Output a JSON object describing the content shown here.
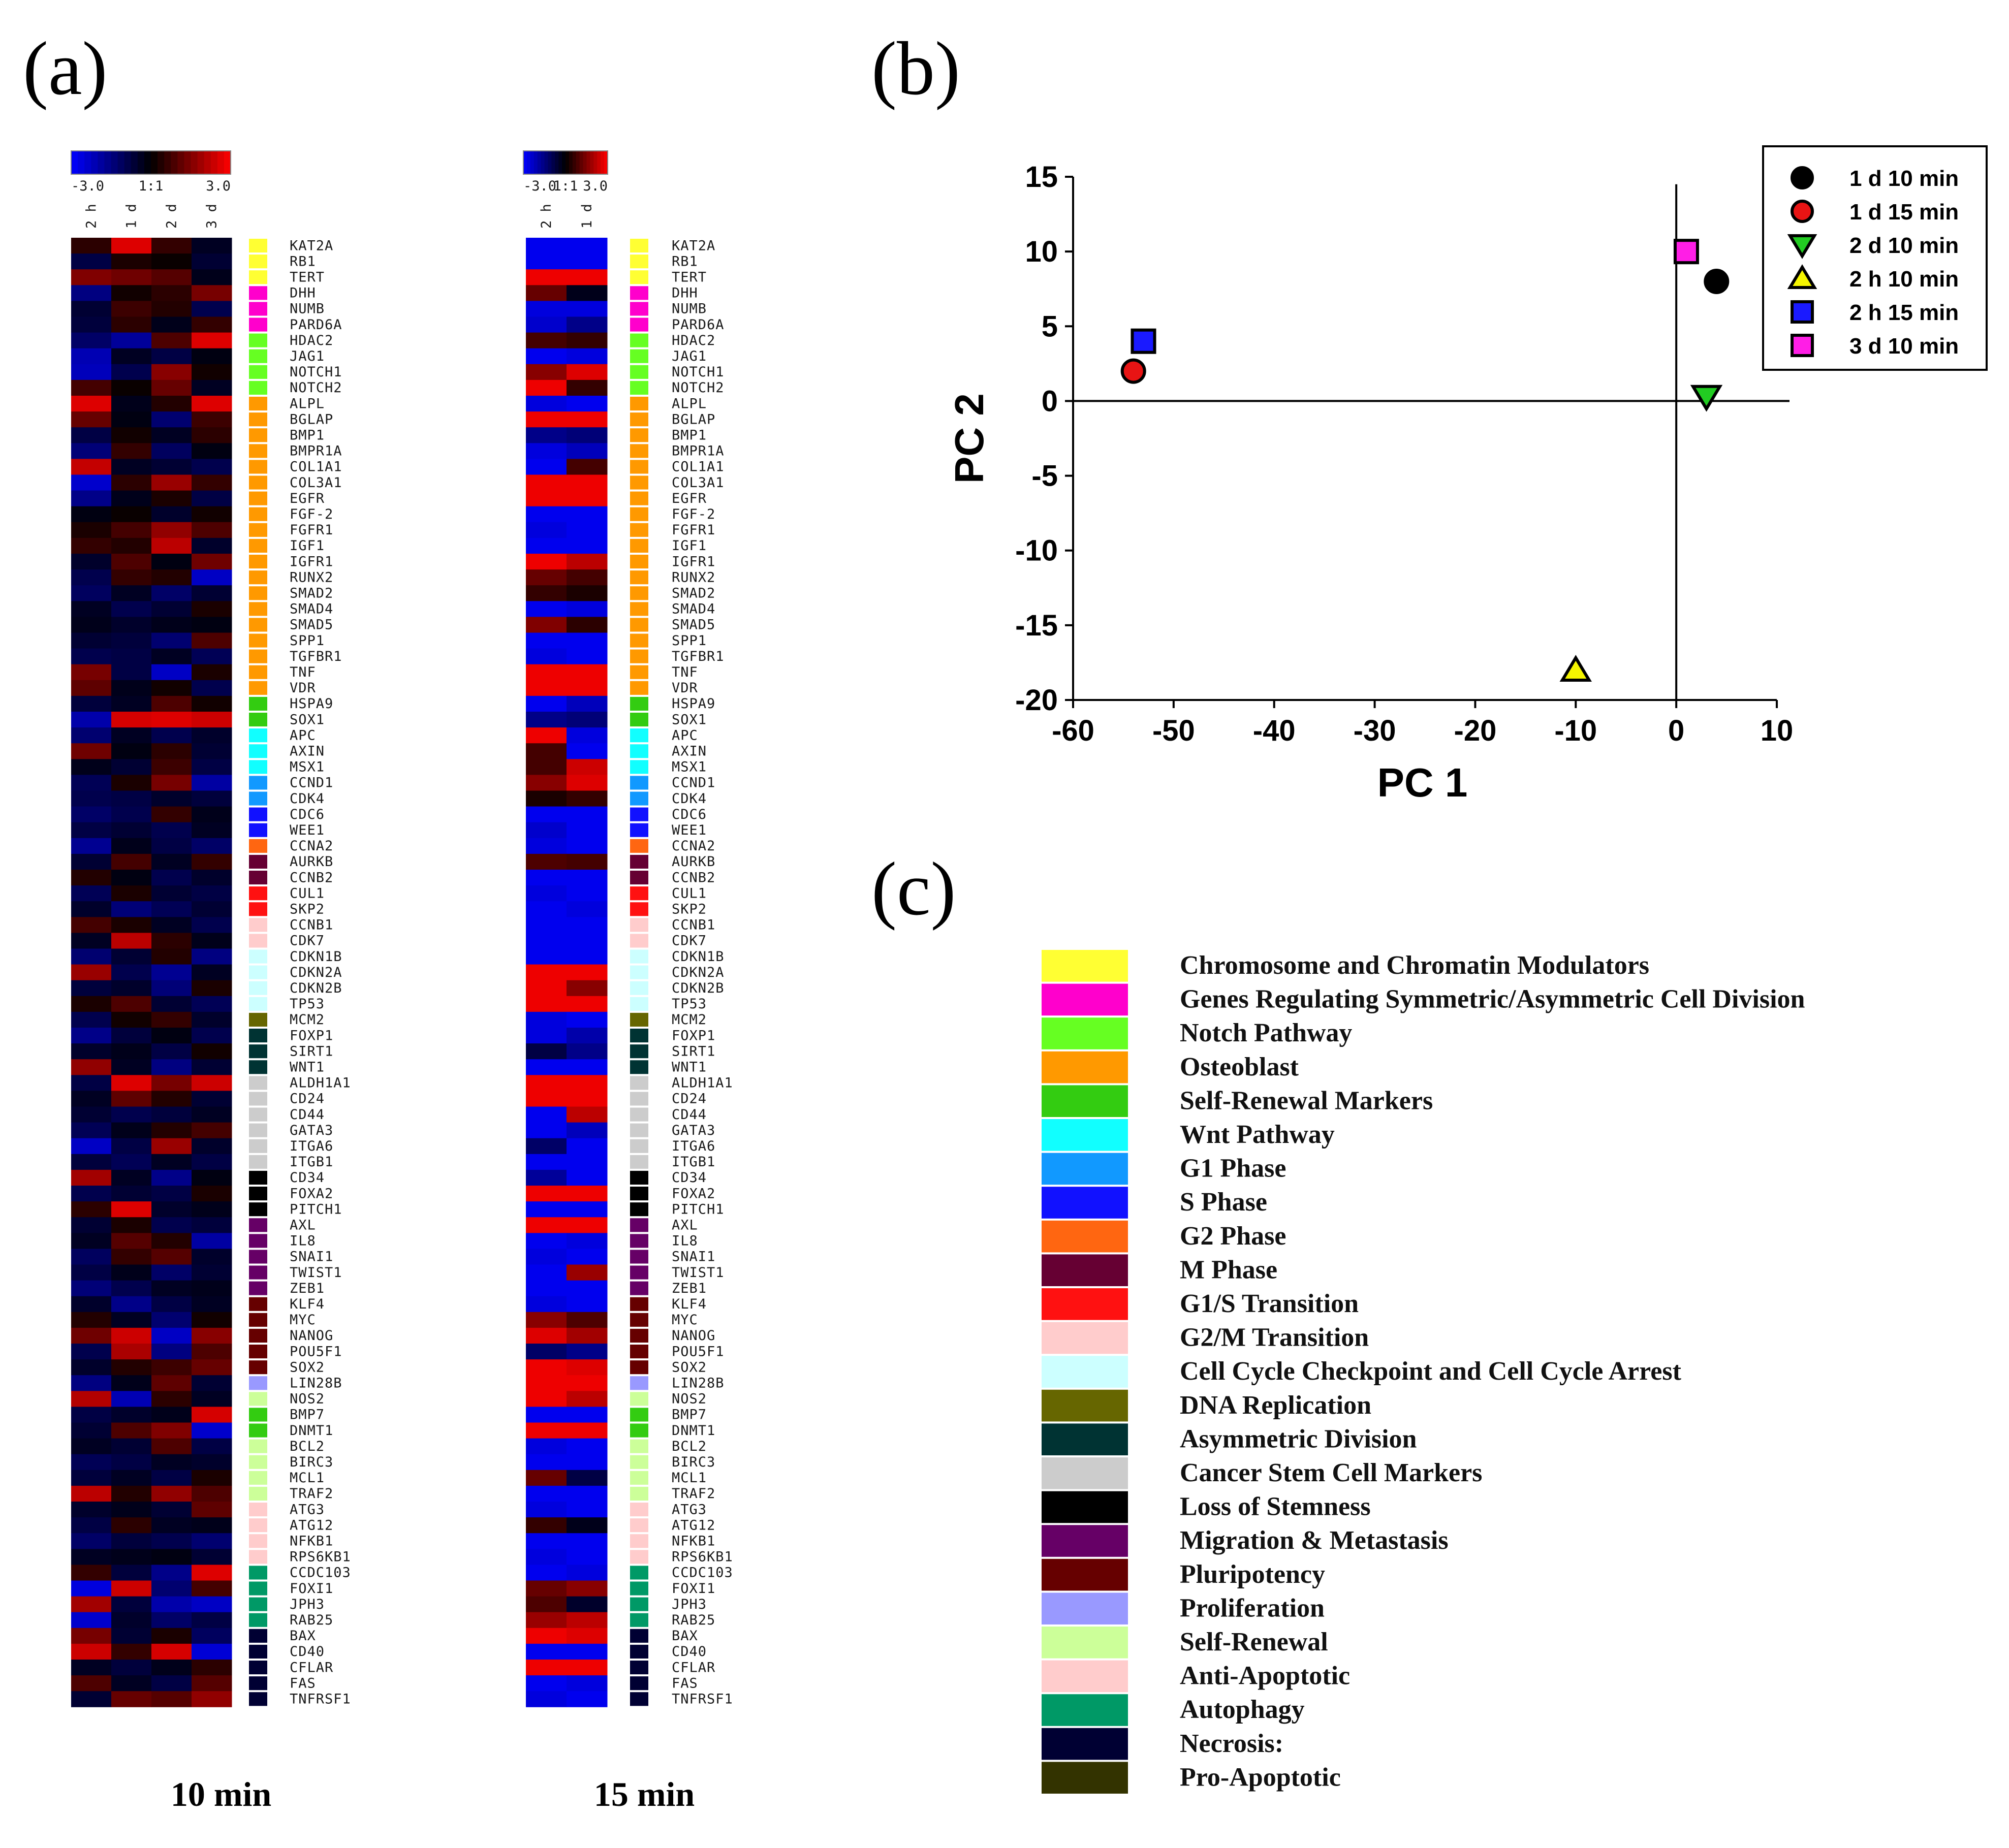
{
  "panels": {
    "a": "(a)",
    "b": "(b)",
    "c": "(c)"
  },
  "heatmap": {
    "scale_labels_10": [
      "-3.0",
      "1:1",
      "3.0"
    ],
    "scale_labels_15": [
      "-3.0",
      "1:1",
      "3.0"
    ],
    "genes": [
      "KAT2A",
      "RB1",
      "TERT",
      "DHH",
      "NUMB",
      "PARD6A",
      "HDAC2",
      "JAG1",
      "NOTCH1",
      "NOTCH2",
      "ALPL",
      "BGLAP",
      "BMP1",
      "BMPR1A",
      "COL1A1",
      "COL3A1",
      "EGFR",
      "FGF-2",
      "FGFR1",
      "IGF1",
      "IGFR1",
      "RUNX2",
      "SMAD2",
      "SMAD4",
      "SMAD5",
      "SPP1",
      "TGFBR1",
      "TNF",
      "VDR",
      "HSPA9",
      "SOX1",
      "APC",
      "AXIN",
      "MSX1",
      "CCND1",
      "CDK4",
      "CDC6",
      "WEE1",
      "CCNA2",
      "AURKB",
      "CCNB2",
      "CUL1",
      "SKP2",
      "CCNB1",
      "CDK7",
      "CDKN1B",
      "CDKN2A",
      "CDKN2B",
      "TP53",
      "MCM2",
      "FOXP1",
      "SIRT1",
      "WNT1",
      "ALDH1A1",
      "CD24",
      "CD44",
      "GATA3",
      "ITGA6",
      "ITGB1",
      "CD34",
      "FOXA2",
      "PITCH1",
      "AXL",
      "IL8",
      "SNAI1",
      "TWIST1",
      "ZEB1",
      "KLF4",
      "MYC",
      "NANOG",
      "POU5F1",
      "SOX2",
      "LIN28B",
      "NOS2",
      "BMP7",
      "DNMT1",
      "BCL2",
      "BIRC3",
      "MCL1",
      "TRAF2",
      "ATG3",
      "ATG12",
      "NFKB1",
      "RPS6KB1",
      "CCDC103",
      "FOXI1",
      "JPH3",
      "RAB25",
      "BAX",
      "CD40",
      "CFLAR",
      "FAS",
      "TNFRSF1"
    ],
    "gene_category_index": [
      0,
      0,
      0,
      1,
      1,
      1,
      2,
      2,
      2,
      2,
      3,
      3,
      3,
      3,
      3,
      3,
      3,
      3,
      3,
      3,
      3,
      3,
      3,
      3,
      3,
      3,
      3,
      3,
      3,
      4,
      4,
      5,
      5,
      5,
      6,
      6,
      7,
      7,
      8,
      9,
      9,
      10,
      10,
      11,
      11,
      12,
      12,
      12,
      12,
      13,
      14,
      14,
      14,
      15,
      15,
      15,
      15,
      15,
      15,
      16,
      16,
      16,
      17,
      17,
      17,
      17,
      17,
      18,
      18,
      18,
      18,
      18,
      19,
      20,
      4,
      4,
      20,
      20,
      20,
      20,
      21,
      21,
      21,
      21,
      22,
      22,
      22,
      22,
      23,
      23,
      23,
      23,
      23
    ],
    "set_10": {
      "caption": "10 min",
      "columns": [
        "2 h",
        "1 d",
        "2 d",
        "3 d"
      ],
      "values": [
        [
          0.5,
          2.6,
          0.6,
          -0.4
        ],
        [
          -0.8,
          0.3,
          0.1,
          -0.6
        ],
        [
          1.5,
          1.3,
          1.0,
          -0.3
        ],
        [
          -1.5,
          0.2,
          0.5,
          1.4
        ],
        [
          -0.6,
          0.7,
          0.4,
          -0.9
        ],
        [
          -0.7,
          0.5,
          -0.3,
          0.6
        ],
        [
          -1.2,
          -1.8,
          0.9,
          2.6
        ],
        [
          -2.1,
          -0.4,
          -0.8,
          -0.2
        ],
        [
          -2.2,
          -0.9,
          1.6,
          0.2
        ],
        [
          0.8,
          0.1,
          1.2,
          -0.4
        ],
        [
          2.6,
          -0.3,
          0.4,
          2.6
        ],
        [
          1.2,
          -0.2,
          -1.3,
          0.7
        ],
        [
          -0.8,
          0.2,
          -0.4,
          0.5
        ],
        [
          -1.4,
          0.6,
          -1.1,
          -0.2
        ],
        [
          2.3,
          -0.4,
          -0.6,
          -0.9
        ],
        [
          -2.4,
          0.5,
          1.8,
          0.6
        ],
        [
          -1.6,
          -0.3,
          0.3,
          -0.8
        ],
        [
          -0.2,
          0.1,
          -0.5,
          0.2
        ],
        [
          0.3,
          0.8,
          1.7,
          0.9
        ],
        [
          0.6,
          0.4,
          2.2,
          -0.5
        ],
        [
          -0.5,
          0.9,
          -0.2,
          1.3
        ],
        [
          -0.9,
          0.6,
          0.4,
          -2.3
        ],
        [
          -1.1,
          -0.4,
          -1.2,
          -0.6
        ],
        [
          -0.4,
          -0.9,
          -0.6,
          0.3
        ],
        [
          -0.3,
          -0.5,
          -0.3,
          -0.2
        ],
        [
          -0.6,
          -0.7,
          -1.3,
          0.9
        ],
        [
          -0.9,
          -0.8,
          -0.4,
          -1.0
        ],
        [
          1.4,
          -0.8,
          -2.3,
          0.3
        ],
        [
          1.1,
          -0.3,
          0.2,
          -0.9
        ],
        [
          -0.7,
          -0.4,
          0.9,
          0.2
        ],
        [
          -2.0,
          2.5,
          2.6,
          2.4
        ],
        [
          -1.3,
          -0.4,
          -0.9,
          -0.5
        ],
        [
          1.3,
          -0.2,
          0.5,
          -0.6
        ],
        [
          -0.3,
          -0.6,
          0.7,
          -0.8
        ],
        [
          -1.0,
          0.3,
          1.4,
          -1.9
        ],
        [
          -0.9,
          -0.8,
          -0.5,
          -0.7
        ],
        [
          -1.2,
          -0.9,
          0.6,
          -0.3
        ],
        [
          -0.8,
          -0.6,
          -0.9,
          -0.4
        ],
        [
          -1.7,
          -0.3,
          -0.8,
          -1.2
        ],
        [
          -0.6,
          0.8,
          -0.4,
          0.6
        ],
        [
          0.4,
          -0.2,
          -0.9,
          -0.5
        ],
        [
          -1.0,
          0.3,
          -0.6,
          -0.8
        ],
        [
          -0.5,
          -1.4,
          -1.0,
          -0.6
        ],
        [
          0.8,
          0.3,
          -0.4,
          -0.9
        ],
        [
          -0.4,
          2.2,
          0.5,
          -0.3
        ],
        [
          -1.3,
          -0.6,
          0.4,
          -1.5
        ],
        [
          1.8,
          -0.9,
          -1.7,
          -0.4
        ],
        [
          -0.7,
          -0.5,
          -1.4,
          0.3
        ],
        [
          0.3,
          0.9,
          -0.6,
          -1.0
        ],
        [
          -0.9,
          0.2,
          0.6,
          -0.5
        ],
        [
          -1.6,
          -0.7,
          -0.2,
          -0.9
        ],
        [
          -0.5,
          -0.3,
          -0.8,
          0.2
        ],
        [
          1.7,
          -0.4,
          -1.5,
          -0.6
        ],
        [
          -0.8,
          2.6,
          1.4,
          2.4
        ],
        [
          -0.4,
          1.1,
          0.4,
          -0.6
        ],
        [
          -0.6,
          -0.9,
          -0.7,
          -0.4
        ],
        [
          -1.0,
          -0.3,
          0.4,
          0.8
        ],
        [
          -2.3,
          -0.8,
          1.8,
          -0.5
        ],
        [
          -0.7,
          -1.0,
          -0.4,
          -0.8
        ],
        [
          1.9,
          -0.4,
          -1.6,
          -0.2
        ],
        [
          -0.9,
          -0.6,
          -0.8,
          0.3
        ],
        [
          0.5,
          2.6,
          -0.5,
          -0.3
        ],
        [
          -0.6,
          0.3,
          -0.9,
          -0.7
        ],
        [
          -0.4,
          1.0,
          0.4,
          -1.9
        ],
        [
          -1.1,
          0.6,
          1.0,
          -0.5
        ],
        [
          -0.8,
          -0.3,
          -1.2,
          -0.6
        ],
        [
          -1.4,
          -0.9,
          -0.4,
          -0.3
        ],
        [
          -0.5,
          -1.6,
          -0.8,
          -0.4
        ],
        [
          0.4,
          -0.4,
          -1.3,
          0.2
        ],
        [
          1.3,
          2.4,
          -2.3,
          1.6
        ],
        [
          -0.9,
          2.0,
          -1.5,
          0.9
        ],
        [
          -0.5,
          0.4,
          0.7,
          1.2
        ],
        [
          -1.5,
          -0.3,
          1.1,
          -0.6
        ],
        [
          2.1,
          -2.1,
          0.5,
          -0.4
        ],
        [
          -0.8,
          -0.5,
          -0.3,
          2.5
        ],
        [
          -0.6,
          0.9,
          1.5,
          -2.4
        ],
        [
          -0.4,
          -0.6,
          0.9,
          -0.8
        ],
        [
          -1.0,
          -0.8,
          -0.4,
          -0.5
        ],
        [
          -0.7,
          -0.4,
          -0.8,
          0.3
        ],
        [
          2.2,
          0.4,
          1.7,
          0.9
        ],
        [
          -0.5,
          -0.3,
          -0.6,
          1.1
        ],
        [
          -0.8,
          0.5,
          -0.4,
          -0.3
        ],
        [
          -1.2,
          -0.7,
          -0.9,
          -1.3
        ],
        [
          -0.4,
          -0.3,
          -0.2,
          -0.6
        ],
        [
          0.6,
          -0.7,
          -1.6,
          2.6
        ],
        [
          -2.6,
          2.4,
          -1.3,
          0.8
        ],
        [
          1.9,
          -0.7,
          -2.0,
          -2.3
        ],
        [
          -2.4,
          -0.5,
          -1.2,
          -0.8
        ],
        [
          1.4,
          -0.6,
          0.3,
          -1.1
        ],
        [
          2.4,
          0.6,
          2.5,
          -2.5
        ],
        [
          -0.4,
          -0.7,
          -0.3,
          0.5
        ],
        [
          0.9,
          -0.4,
          -0.8,
          1.0
        ],
        [
          -0.6,
          1.2,
          1.0,
          1.7
        ]
      ]
    },
    "set_15": {
      "caption": "15 min",
      "columns": [
        "2 h",
        "1 d"
      ],
      "values": [
        [
          -2.8,
          -2.8
        ],
        [
          -2.8,
          -2.8
        ],
        [
          2.8,
          2.8
        ],
        [
          1.2,
          -0.3
        ],
        [
          -2.6,
          -2.6
        ],
        [
          -2.4,
          -1.6
        ],
        [
          0.8,
          0.6
        ],
        [
          -2.8,
          -2.6
        ],
        [
          1.6,
          2.6
        ],
        [
          2.8,
          0.6
        ],
        [
          -2.6,
          -2.8
        ],
        [
          2.8,
          2.8
        ],
        [
          -1.6,
          -1.4
        ],
        [
          -2.6,
          -2.2
        ],
        [
          -2.8,
          0.8
        ],
        [
          2.8,
          2.8
        ],
        [
          2.8,
          2.8
        ],
        [
          -2.8,
          -2.8
        ],
        [
          -2.6,
          -2.8
        ],
        [
          -2.8,
          -2.8
        ],
        [
          2.8,
          2.2
        ],
        [
          1.2,
          0.8
        ],
        [
          0.6,
          0.3
        ],
        [
          -2.8,
          -2.6
        ],
        [
          1.5,
          0.5
        ],
        [
          -2.8,
          -2.8
        ],
        [
          -2.6,
          -2.8
        ],
        [
          2.8,
          2.8
        ],
        [
          2.8,
          2.8
        ],
        [
          -2.8,
          -2.2
        ],
        [
          -1.6,
          -1.4
        ],
        [
          2.8,
          -2.6
        ],
        [
          0.8,
          -2.8
        ],
        [
          0.8,
          2.4
        ],
        [
          1.6,
          2.6
        ],
        [
          0.3,
          0.6
        ],
        [
          -2.8,
          -2.8
        ],
        [
          -2.4,
          -2.8
        ],
        [
          -2.6,
          -2.8
        ],
        [
          0.9,
          0.8
        ],
        [
          -2.8,
          -2.8
        ],
        [
          -2.6,
          -2.8
        ],
        [
          -2.8,
          -2.6
        ],
        [
          -2.8,
          -2.8
        ],
        [
          -2.8,
          -2.8
        ],
        [
          -2.8,
          -2.8
        ],
        [
          2.8,
          2.8
        ],
        [
          2.8,
          1.6
        ],
        [
          2.8,
          2.8
        ],
        [
          -2.6,
          -2.8
        ],
        [
          -2.6,
          -2.0
        ],
        [
          -0.8,
          -1.6
        ],
        [
          -2.8,
          -2.8
        ],
        [
          2.8,
          2.8
        ],
        [
          2.8,
          2.8
        ],
        [
          -2.8,
          2.2
        ],
        [
          -2.8,
          -2.2
        ],
        [
          -1.2,
          -2.8
        ],
        [
          -2.8,
          -2.8
        ],
        [
          -1.8,
          -2.8
        ],
        [
          2.8,
          2.8
        ],
        [
          -2.8,
          -2.8
        ],
        [
          2.8,
          2.8
        ],
        [
          -2.8,
          -2.6
        ],
        [
          -2.6,
          -2.8
        ],
        [
          -2.8,
          1.8
        ],
        [
          -2.8,
          -2.8
        ],
        [
          -2.6,
          -2.8
        ],
        [
          1.6,
          0.9
        ],
        [
          2.6,
          1.9
        ],
        [
          -1.2,
          -1.6
        ],
        [
          2.8,
          2.6
        ],
        [
          2.8,
          2.8
        ],
        [
          2.8,
          2.2
        ],
        [
          -2.8,
          -2.8
        ],
        [
          2.8,
          2.8
        ],
        [
          -2.6,
          -2.8
        ],
        [
          -2.8,
          -2.8
        ],
        [
          1.2,
          -0.8
        ],
        [
          -2.8,
          -2.8
        ],
        [
          -2.6,
          -2.8
        ],
        [
          0.6,
          -0.3
        ],
        [
          -2.8,
          -2.8
        ],
        [
          -2.6,
          -2.8
        ],
        [
          -2.8,
          -2.6
        ],
        [
          1.2,
          1.6
        ],
        [
          0.9,
          -0.5
        ],
        [
          1.8,
          2.2
        ],
        [
          2.8,
          2.6
        ],
        [
          -2.8,
          -2.8
        ],
        [
          2.8,
          2.8
        ],
        [
          -2.8,
          -2.6
        ],
        [
          -2.6,
          -2.8
        ]
      ]
    }
  },
  "pca": {
    "chart_data": {
      "type": "scatter",
      "xlabel": "PC 1",
      "ylabel": "PC 2",
      "xlim": [
        -60,
        10
      ],
      "ylim": [
        -20,
        15
      ],
      "xticks": [
        "-60",
        "-50",
        "-40",
        "-30",
        "-20",
        "-10",
        "0",
        "10"
      ],
      "yticks": [
        "15",
        "10",
        "5",
        "0",
        "-5",
        "-10",
        "-15",
        "-20"
      ],
      "legend_position": "top-right",
      "series": [
        {
          "name": "1 d 10 min",
          "marker": "circle",
          "color": "#000000",
          "x": 4,
          "y": 8
        },
        {
          "name": "1 d 15 min",
          "marker": "circle",
          "color": "#e81414",
          "x": -54,
          "y": 2
        },
        {
          "name": "2 d 10 min",
          "marker": "triangle-down",
          "color": "#22cc22",
          "x": 3,
          "y": 0.3
        },
        {
          "name": "2 h 10 min",
          "marker": "triangle-up",
          "color": "#f5f500",
          "x": -10,
          "y": -18
        },
        {
          "name": "2 h 15 min",
          "marker": "square",
          "color": "#1a1aff",
          "x": -53,
          "y": 4
        },
        {
          "name": "3 d 10 min",
          "marker": "square",
          "color": "#ff1ee6",
          "x": 1,
          "y": 10
        }
      ]
    }
  },
  "categories": [
    {
      "label": "Chromosome and Chromatin Modulators",
      "color": "#ffff33"
    },
    {
      "label": "Genes Regulating Symmetric/Asymmetric Cell Division",
      "color": "#ff00cc"
    },
    {
      "label": "Notch Pathway",
      "color": "#66ff22"
    },
    {
      "label": "Osteoblast",
      "color": "#ff9900"
    },
    {
      "label": "Self-Renewal Markers",
      "color": "#33cc11"
    },
    {
      "label": "Wnt Pathway",
      "color": "#11ffff"
    },
    {
      "label": "G1 Phase",
      "color": "#1199ff"
    },
    {
      "label": "S Phase",
      "color": "#1111ff"
    },
    {
      "label": "G2 Phase",
      "color": "#ff6611"
    },
    {
      "label": "M Phase",
      "color": "#660033"
    },
    {
      "label": "G1/S Transition",
      "color": "#ff1111"
    },
    {
      "label": "G2/M Transition",
      "color": "#ffcccc"
    },
    {
      "label": "Cell Cycle Checkpoint and Cell Cycle Arrest",
      "color": "#ccffff"
    },
    {
      "label": "DNA Replication",
      "color": "#666600"
    },
    {
      "label": "Asymmetric Division",
      "color": "#003333"
    },
    {
      "label": "Cancer Stem Cell Markers",
      "color": "#cccccc"
    },
    {
      "label": "Loss of Stemness",
      "color": "#000000"
    },
    {
      "label": "Migration & Metastasis",
      "color": "#660066"
    },
    {
      "label": "Pluripotency",
      "color": "#660000"
    },
    {
      "label": "Proliferation",
      "color": "#9999ff"
    },
    {
      "label": "Self-Renewal",
      "color": "#ccff99"
    },
    {
      "label": "Anti-Apoptotic",
      "color": "#ffcccc"
    },
    {
      "label": "Autophagy",
      "color": "#009966"
    },
    {
      "label": "Necrosis:",
      "color": "#000033"
    },
    {
      "label": "Pro-Apoptotic",
      "color": "#333300"
    }
  ]
}
